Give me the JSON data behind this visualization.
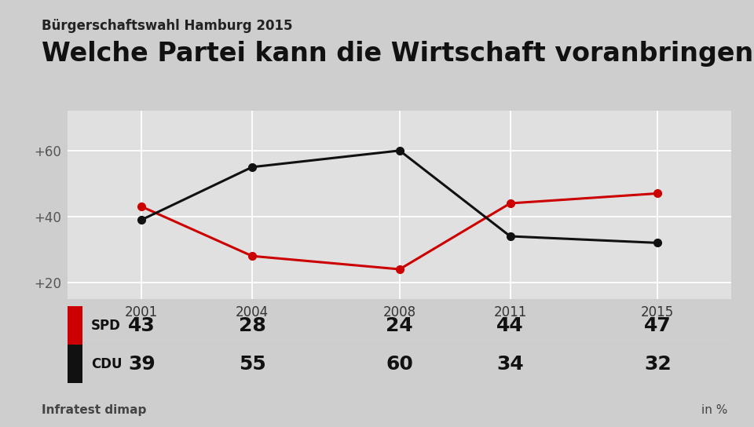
{
  "supertitle": "Bürgerschaftswahl Hamburg 2015",
  "title": "Welche Partei kann die Wirtschaft voranbringen?",
  "years": [
    2001,
    2004,
    2008,
    2011,
    2015
  ],
  "spd_values": [
    43,
    28,
    24,
    44,
    47
  ],
  "cdu_values": [
    39,
    55,
    60,
    34,
    32
  ],
  "spd_color": "#CC0000",
  "cdu_color": "#111111",
  "background_color": "#CECECE",
  "chart_background": "#E0E0E0",
  "table_background": "#FAFAFA",
  "yticks": [
    20,
    40,
    60
  ],
  "ytick_labels": [
    "+20",
    "+40",
    "+60"
  ],
  "ylim": [
    15,
    72
  ],
  "source_left": "Infratest dimap",
  "source_right": "in %",
  "legend_labels": [
    "SPD",
    "CDU"
  ],
  "supertitle_fontsize": 12,
  "title_fontsize": 24,
  "line_width": 2.2,
  "marker_size": 7
}
